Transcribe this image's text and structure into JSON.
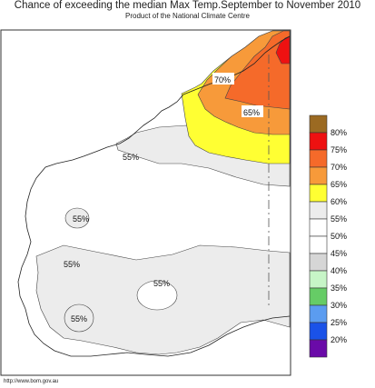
{
  "header": {
    "title": "Chance of exceeding the median Max Temp.September to November 2010",
    "subtitle": "Product of the National Climate Centre"
  },
  "map": {
    "region": "Western Australia",
    "contour_labels": [
      "70%",
      "65%",
      "55%",
      "55%",
      "55%",
      "55%",
      "55%"
    ]
  },
  "legend": {
    "items": [
      {
        "label": "80%",
        "color": "#9b6a22"
      },
      {
        "label": "75%",
        "color": "#ee1111"
      },
      {
        "label": "70%",
        "color": "#f56a2a"
      },
      {
        "label": "65%",
        "color": "#f79a3a"
      },
      {
        "label": "60%",
        "color": "#ffff33"
      },
      {
        "label": "55%",
        "color": "#ececec"
      },
      {
        "label": "50%",
        "color": "#ffffff"
      },
      {
        "label": "45%",
        "color": "#ffffff"
      },
      {
        "label": "40%",
        "color": "#d6d6d6"
      },
      {
        "label": "35%",
        "color": "#c7f5c7"
      },
      {
        "label": "30%",
        "color": "#66cc66"
      },
      {
        "label": "25%",
        "color": "#5b9cf0"
      },
      {
        "label": "20%",
        "color": "#1a52e8"
      },
      {
        "label": "",
        "color": "#6a0aa8"
      }
    ]
  },
  "footer": {
    "credit": "http://www.bom.gov.au"
  }
}
